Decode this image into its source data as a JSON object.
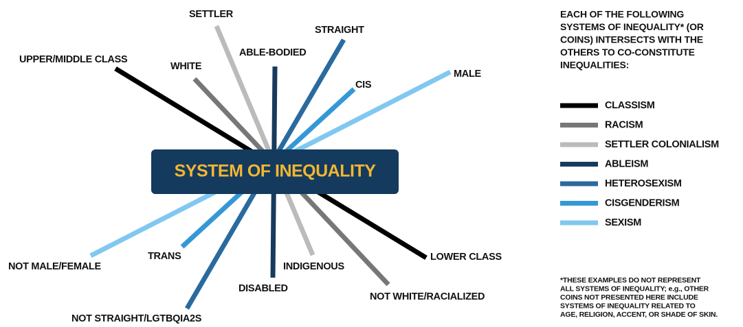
{
  "center_label": "SYSTEM OF INEQUALITY",
  "heading": [
    "EACH OF THE FOLLOWING",
    "SYSTEMS OF INEQUALITY* (OR",
    "COINS) INTERSECTS WITH THE",
    "OTHERS TO CO-CONSTITUTE",
    "INEQUALITIES:"
  ],
  "systems": [
    {
      "legend": "CLASSISM",
      "privileged": "UPPER/MIDDLE CLASS",
      "marginalized": "LOWER CLASS",
      "color": "#000000"
    },
    {
      "legend": "RACISM",
      "privileged": "WHITE",
      "marginalized": "NOT WHITE/RACIALIZED",
      "color": "#777777"
    },
    {
      "legend": "SETTLER COLONIALISM",
      "privileged": "SETTLER",
      "marginalized": "INDIGENOUS",
      "color": "#bbbbbb"
    },
    {
      "legend": "ABLEISM",
      "privileged": "ABLE-BODIED",
      "marginalized": "DISABLED",
      "color": "#183a5e"
    },
    {
      "legend": "HETEROSEXISM",
      "privileged": "STRAIGHT",
      "marginalized": "NOT STRAIGHT/LGTBQIA2S",
      "color": "#2a6a9e"
    },
    {
      "legend": "CISGENDERISM",
      "privileged": "CIS",
      "marginalized": "TRANS",
      "color": "#3598d6"
    },
    {
      "legend": "SEXISM",
      "privileged": "MALE",
      "marginalized": "NOT MALE/FEMALE",
      "color": "#80c8f0"
    }
  ],
  "footnote": [
    "*THESE EXAMPLES DO NOT REPRESENT",
    "ALL SYSTEMS OF INEQUALITY; e.g., OTHER",
    "COINS NOT PRESENTED HERE INCLUDE",
    "SYSTEMS OF INEQUALITY RELATED TO",
    "AGE, RELIGION, ACCENT, OR SHADE OF SKIN."
  ]
}
